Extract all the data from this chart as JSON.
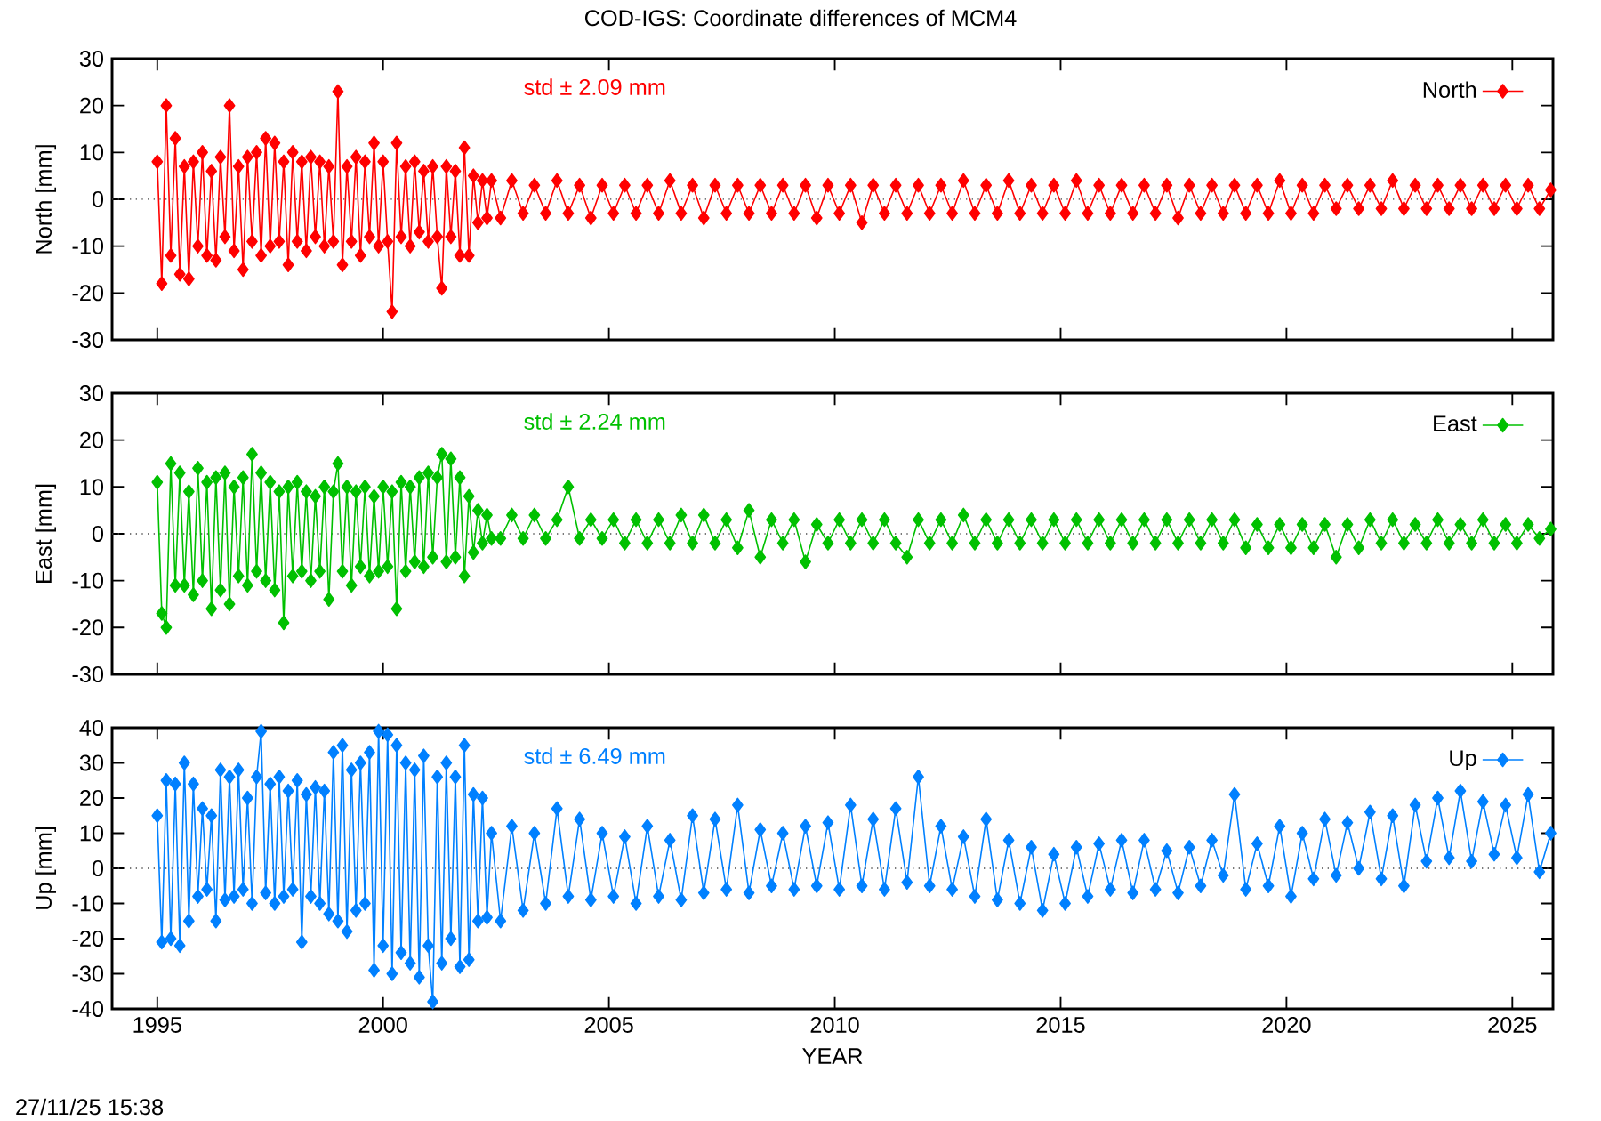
{
  "chart_data": [
    {
      "type": "line",
      "title": "COD-IGS: Coordinate differences of MCM4",
      "ylabel": "North [mm]",
      "x": [
        1995,
        1995.1,
        1995.2,
        1995.3,
        1995.4,
        1995.5,
        1995.6,
        1995.7,
        1995.8,
        1995.9,
        1996,
        1996.1,
        1996.2,
        1996.3,
        1996.4,
        1996.5,
        1996.6,
        1996.7,
        1996.8,
        1996.9,
        1997,
        1997.1,
        1997.2,
        1997.3,
        1997.4,
        1997.5,
        1997.6,
        1997.7,
        1997.8,
        1997.9,
        1998,
        1998.1,
        1998.2,
        1998.3,
        1998.4,
        1998.5,
        1998.6,
        1998.7,
        1998.8,
        1998.9,
        1999,
        1999.1,
        1999.2,
        1999.3,
        1999.4,
        1999.5,
        1999.6,
        1999.7,
        1999.8,
        1999.9,
        2000,
        2000.1,
        2000.2,
        2000.3,
        2000.4,
        2000.5,
        2000.6,
        2000.7,
        2000.8,
        2000.9,
        2001,
        2001.1,
        2001.2,
        2001.3,
        2001.4,
        2001.5,
        2001.6,
        2001.7,
        2001.8,
        2001.9,
        2002,
        2002.1,
        2002.2,
        2002.3,
        2002.4,
        2002.6,
        2002.85,
        2003.1,
        2003.35,
        2003.6,
        2003.85,
        2004.1,
        2004.35,
        2004.6,
        2004.85,
        2005.1,
        2005.35,
        2005.6,
        2005.85,
        2006.1,
        2006.35,
        2006.6,
        2006.85,
        2007.1,
        2007.35,
        2007.6,
        2007.85,
        2008.1,
        2008.35,
        2008.6,
        2008.85,
        2009.1,
        2009.35,
        2009.6,
        2009.85,
        2010.1,
        2010.35,
        2010.6,
        2010.85,
        2011.1,
        2011.35,
        2011.6,
        2011.85,
        2012.1,
        2012.35,
        2012.6,
        2012.85,
        2013.1,
        2013.35,
        2013.6,
        2013.85,
        2014.1,
        2014.35,
        2014.6,
        2014.85,
        2015.1,
        2015.35,
        2015.6,
        2015.85,
        2016.1,
        2016.35,
        2016.6,
        2016.85,
        2017.1,
        2017.35,
        2017.6,
        2017.85,
        2018.1,
        2018.35,
        2018.6,
        2018.85,
        2019.1,
        2019.35,
        2019.6,
        2019.85,
        2020.1,
        2020.35,
        2020.6,
        2020.85,
        2021.1,
        2021.35,
        2021.6,
        2021.85,
        2022.1,
        2022.35,
        2022.6,
        2022.85,
        2023.1,
        2023.35,
        2023.6,
        2023.85,
        2024.1,
        2024.35,
        2024.6,
        2024.85,
        2025.1,
        2025.35,
        2025.6,
        2025.85
      ],
      "series": [
        {
          "name": "North",
          "color": "#ff0000",
          "values": [
            8,
            -18,
            20,
            -12,
            13,
            -16,
            7,
            -17,
            8,
            -10,
            10,
            -12,
            6,
            -13,
            9,
            -8,
            20,
            -11,
            7,
            -15,
            9,
            -9,
            10,
            -12,
            13,
            -10,
            12,
            -9,
            8,
            -14,
            10,
            -9,
            8,
            -11,
            9,
            -8,
            8,
            -10,
            7,
            -9,
            23,
            -14,
            7,
            -9,
            9,
            -12,
            8,
            -8,
            12,
            -10,
            8,
            -9,
            -24,
            12,
            -8,
            7,
            -10,
            8,
            -7,
            6,
            -9,
            7,
            -8,
            -19,
            7,
            -8,
            6,
            -12,
            11,
            -12,
            5,
            -5,
            4,
            -4,
            4,
            -4,
            4,
            -3,
            3,
            -3,
            4,
            -3,
            3,
            -4,
            3,
            -3,
            3,
            -3,
            3,
            -3,
            4,
            -3,
            3,
            -4,
            3,
            -3,
            3,
            -3,
            3,
            -3,
            3,
            -3,
            3,
            -4,
            3,
            -3,
            3,
            -5,
            3,
            -3,
            3,
            -3,
            3,
            -3,
            3,
            -3,
            4,
            -3,
            3,
            -3,
            4,
            -3,
            3,
            -3,
            3,
            -3,
            4,
            -3,
            3,
            -3,
            3,
            -3,
            3,
            -3,
            3,
            -4,
            3,
            -3,
            3,
            -3,
            3,
            -3,
            3,
            -3,
            4,
            -3,
            3,
            -3,
            3,
            -2,
            3,
            -2,
            3,
            -2,
            4,
            -2,
            3,
            -2,
            3,
            -2,
            3,
            -2,
            3,
            -2,
            3,
            -2,
            3,
            -2,
            2
          ]
        }
      ],
      "xlim": [
        1994,
        2025.9
      ],
      "ylim": [
        -30,
        30
      ],
      "xticks": [
        1995,
        2000,
        2005,
        2010,
        2015,
        2020,
        2025
      ],
      "yticks": [
        -30,
        -20,
        -10,
        0,
        10,
        20,
        30
      ],
      "tick_labels": "y",
      "legend": "top right",
      "marker": "diamond",
      "ref_lines": [
        {
          "axis": "y",
          "value": 0,
          "line_style": "dotted"
        }
      ],
      "annotations": [
        "std ± 2.09 mm"
      ]
    },
    {
      "type": "line",
      "ylabel": "East [mm]",
      "x": [
        1995,
        1995.1,
        1995.2,
        1995.3,
        1995.4,
        1995.5,
        1995.6,
        1995.7,
        1995.8,
        1995.9,
        1996,
        1996.1,
        1996.2,
        1996.3,
        1996.4,
        1996.5,
        1996.6,
        1996.7,
        1996.8,
        1996.9,
        1997,
        1997.1,
        1997.2,
        1997.3,
        1997.4,
        1997.5,
        1997.6,
        1997.7,
        1997.8,
        1997.9,
        1998,
        1998.1,
        1998.2,
        1998.3,
        1998.4,
        1998.5,
        1998.6,
        1998.7,
        1998.8,
        1998.9,
        1999,
        1999.1,
        1999.2,
        1999.3,
        1999.4,
        1999.5,
        1999.6,
        1999.7,
        1999.8,
        1999.9,
        2000,
        2000.1,
        2000.2,
        2000.3,
        2000.4,
        2000.5,
        2000.6,
        2000.7,
        2000.8,
        2000.9,
        2001,
        2001.1,
        2001.2,
        2001.3,
        2001.4,
        2001.5,
        2001.6,
        2001.7,
        2001.8,
        2001.9,
        2002,
        2002.1,
        2002.2,
        2002.3,
        2002.4,
        2002.6,
        2002.85,
        2003.1,
        2003.35,
        2003.6,
        2003.85,
        2004.1,
        2004.35,
        2004.6,
        2004.85,
        2005.1,
        2005.35,
        2005.6,
        2005.85,
        2006.1,
        2006.35,
        2006.6,
        2006.85,
        2007.1,
        2007.35,
        2007.6,
        2007.85,
        2008.1,
        2008.35,
        2008.6,
        2008.85,
        2009.1,
        2009.35,
        2009.6,
        2009.85,
        2010.1,
        2010.35,
        2010.6,
        2010.85,
        2011.1,
        2011.35,
        2011.6,
        2011.85,
        2012.1,
        2012.35,
        2012.6,
        2012.85,
        2013.1,
        2013.35,
        2013.6,
        2013.85,
        2014.1,
        2014.35,
        2014.6,
        2014.85,
        2015.1,
        2015.35,
        2015.6,
        2015.85,
        2016.1,
        2016.35,
        2016.6,
        2016.85,
        2017.1,
        2017.35,
        2017.6,
        2017.85,
        2018.1,
        2018.35,
        2018.6,
        2018.85,
        2019.1,
        2019.35,
        2019.6,
        2019.85,
        2020.1,
        2020.35,
        2020.6,
        2020.85,
        2021.1,
        2021.35,
        2021.6,
        2021.85,
        2022.1,
        2022.35,
        2022.6,
        2022.85,
        2023.1,
        2023.35,
        2023.6,
        2023.85,
        2024.1,
        2024.35,
        2024.6,
        2024.85,
        2025.1,
        2025.35,
        2025.6,
        2025.85
      ],
      "series": [
        {
          "name": "East",
          "color": "#00c000",
          "values": [
            11,
            -17,
            -20,
            15,
            -11,
            13,
            -11,
            9,
            -13,
            14,
            -10,
            11,
            -16,
            12,
            -12,
            13,
            -15,
            10,
            -9,
            12,
            -11,
            17,
            -8,
            13,
            -10,
            11,
            -12,
            9,
            -19,
            10,
            -9,
            11,
            -8,
            9,
            -10,
            8,
            -8,
            10,
            -14,
            9,
            15,
            -8,
            10,
            -11,
            9,
            -7,
            10,
            -9,
            8,
            -8,
            10,
            -7,
            9,
            -16,
            11,
            -8,
            10,
            -6,
            12,
            -7,
            13,
            -5,
            12,
            17,
            -6,
            16,
            -5,
            12,
            -9,
            8,
            -4,
            5,
            -2,
            4,
            -1,
            -1,
            4,
            -1,
            4,
            -1,
            3,
            10,
            -1,
            3,
            -1,
            3,
            -2,
            3,
            -2,
            3,
            -2,
            4,
            -2,
            4,
            -2,
            3,
            -3,
            5,
            -5,
            3,
            -2,
            3,
            -6,
            2,
            -2,
            3,
            -2,
            3,
            -2,
            3,
            -2,
            -5,
            3,
            -2,
            3,
            -2,
            4,
            -2,
            3,
            -2,
            3,
            -2,
            3,
            -2,
            3,
            -2,
            3,
            -2,
            3,
            -2,
            3,
            -2,
            3,
            -2,
            3,
            -2,
            3,
            -2,
            3,
            -2,
            3,
            -3,
            2,
            -3,
            2,
            -3,
            2,
            -3,
            2,
            -5,
            2,
            -3,
            3,
            -2,
            3,
            -2,
            2,
            -2,
            3,
            -2,
            2,
            -2,
            3,
            -2,
            2,
            -2,
            2,
            -1,
            1
          ]
        }
      ],
      "xlim": [
        1994,
        2025.9
      ],
      "ylim": [
        -30,
        30
      ],
      "xticks": [
        1995,
        2000,
        2005,
        2010,
        2015,
        2020,
        2025
      ],
      "yticks": [
        -30,
        -20,
        -10,
        0,
        10,
        20,
        30
      ],
      "tick_labels": "y",
      "legend": "top right",
      "marker": "diamond",
      "ref_lines": [
        {
          "axis": "y",
          "value": 0,
          "line_style": "dotted"
        }
      ],
      "annotations": [
        "std ± 2.24 mm"
      ]
    },
    {
      "type": "line",
      "xlabel": "YEAR",
      "ylabel": "Up [mm]",
      "x": [
        1995,
        1995.1,
        1995.2,
        1995.3,
        1995.4,
        1995.5,
        1995.6,
        1995.7,
        1995.8,
        1995.9,
        1996,
        1996.1,
        1996.2,
        1996.3,
        1996.4,
        1996.5,
        1996.6,
        1996.7,
        1996.8,
        1996.9,
        1997,
        1997.1,
        1997.2,
        1997.3,
        1997.4,
        1997.5,
        1997.6,
        1997.7,
        1997.8,
        1997.9,
        1998,
        1998.1,
        1998.2,
        1998.3,
        1998.4,
        1998.5,
        1998.6,
        1998.7,
        1998.8,
        1998.9,
        1999,
        1999.1,
        1999.2,
        1999.3,
        1999.4,
        1999.5,
        1999.6,
        1999.7,
        1999.8,
        1999.9,
        2000,
        2000.1,
        2000.2,
        2000.3,
        2000.4,
        2000.5,
        2000.6,
        2000.7,
        2000.8,
        2000.9,
        2001,
        2001.1,
        2001.2,
        2001.3,
        2001.4,
        2001.5,
        2001.6,
        2001.7,
        2001.8,
        2001.9,
        2002,
        2002.1,
        2002.2,
        2002.3,
        2002.4,
        2002.6,
        2002.85,
        2003.1,
        2003.35,
        2003.6,
        2003.85,
        2004.1,
        2004.35,
        2004.6,
        2004.85,
        2005.1,
        2005.35,
        2005.6,
        2005.85,
        2006.1,
        2006.35,
        2006.6,
        2006.85,
        2007.1,
        2007.35,
        2007.6,
        2007.85,
        2008.1,
        2008.35,
        2008.6,
        2008.85,
        2009.1,
        2009.35,
        2009.6,
        2009.85,
        2010.1,
        2010.35,
        2010.6,
        2010.85,
        2011.1,
        2011.35,
        2011.6,
        2011.85,
        2012.1,
        2012.35,
        2012.6,
        2012.85,
        2013.1,
        2013.35,
        2013.6,
        2013.85,
        2014.1,
        2014.35,
        2014.6,
        2014.85,
        2015.1,
        2015.35,
        2015.6,
        2015.85,
        2016.1,
        2016.35,
        2016.6,
        2016.85,
        2017.1,
        2017.35,
        2017.6,
        2017.85,
        2018.1,
        2018.35,
        2018.6,
        2018.85,
        2019.1,
        2019.35,
        2019.6,
        2019.85,
        2020.1,
        2020.35,
        2020.6,
        2020.85,
        2021.1,
        2021.35,
        2021.6,
        2021.85,
        2022.1,
        2022.35,
        2022.6,
        2022.85,
        2023.1,
        2023.35,
        2023.6,
        2023.85,
        2024.1,
        2024.35,
        2024.6,
        2024.85,
        2025.1,
        2025.35,
        2025.6,
        2025.85
      ],
      "series": [
        {
          "name": "Up",
          "color": "#0080ff",
          "values": [
            15,
            -21,
            25,
            -20,
            24,
            -22,
            30,
            -15,
            24,
            -8,
            17,
            -6,
            15,
            -15,
            28,
            -9,
            26,
            -8,
            28,
            -6,
            20,
            -10,
            26,
            39,
            -7,
            24,
            -10,
            26,
            -8,
            22,
            -6,
            25,
            -21,
            21,
            -8,
            23,
            -10,
            22,
            -13,
            33,
            -15,
            35,
            -18,
            28,
            -12,
            30,
            -10,
            33,
            -29,
            39,
            -22,
            38,
            -30,
            35,
            -24,
            30,
            -27,
            28,
            -31,
            32,
            -22,
            -38,
            26,
            -27,
            30,
            -20,
            26,
            -28,
            35,
            -26,
            21,
            -15,
            20,
            -14,
            10,
            -15,
            12,
            -12,
            10,
            -10,
            17,
            -8,
            14,
            -9,
            10,
            -8,
            9,
            -10,
            12,
            -8,
            8,
            -9,
            15,
            -7,
            14,
            -6,
            18,
            -7,
            11,
            -5,
            10,
            -6,
            12,
            -5,
            13,
            -6,
            18,
            -5,
            14,
            -6,
            17,
            -4,
            26,
            -5,
            12,
            -6,
            9,
            -8,
            14,
            -9,
            8,
            -10,
            6,
            -12,
            4,
            -10,
            6,
            -8,
            7,
            -6,
            8,
            -7,
            8,
            -6,
            5,
            -7,
            6,
            -5,
            8,
            -2,
            21,
            -6,
            7,
            -5,
            12,
            -8,
            10,
            -3,
            14,
            -2,
            13,
            0,
            16,
            -3,
            15,
            -5,
            18,
            2,
            20,
            3,
            22,
            2,
            19,
            4,
            18,
            3,
            21,
            -1,
            10
          ]
        }
      ],
      "xlim": [
        1994,
        2025.9
      ],
      "ylim": [
        -40,
        40
      ],
      "xticks": [
        1995,
        2000,
        2005,
        2010,
        2015,
        2020,
        2025
      ],
      "yticks": [
        -40,
        -30,
        -20,
        -10,
        0,
        10,
        20,
        30,
        40
      ],
      "legend": "top right",
      "marker": "diamond",
      "ref_lines": [
        {
          "axis": "y",
          "value": 0,
          "line_style": "dotted"
        }
      ],
      "annotations": [
        "std ± 6.49 mm",
        "27/11/25 15:38"
      ]
    }
  ]
}
